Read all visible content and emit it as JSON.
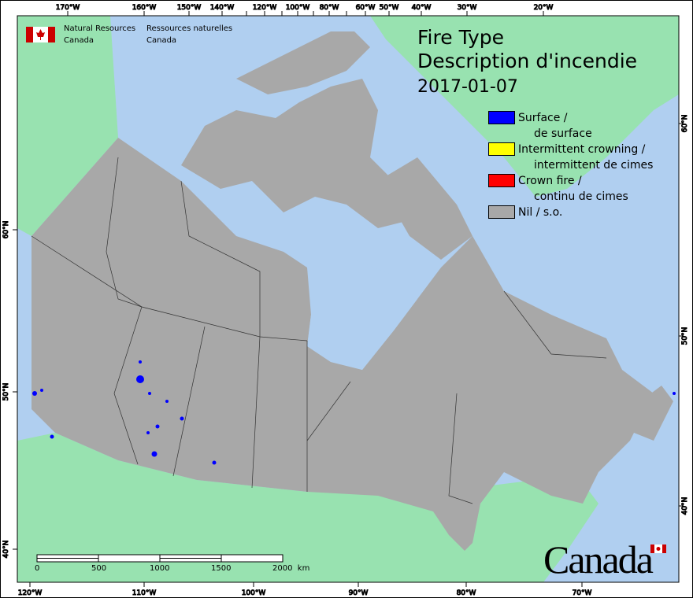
{
  "header": {
    "org_en_line1": "Natural Resources",
    "org_en_line2": "Canada",
    "org_fr_line1": "Ressources naturelles",
    "org_fr_line2": "Canada"
  },
  "title": {
    "line1": "Fire Type",
    "line2": "Description d'incendie",
    "date": "2017-01-07"
  },
  "legend": [
    {
      "label": "Surface /",
      "sub": "de surface",
      "color": "#0000ff"
    },
    {
      "label": "Intermittent crowning /",
      "sub": "intermittent de cimes",
      "color": "#ffff00"
    },
    {
      "label": "Crown fire /",
      "sub": "continu de cimes",
      "color": "#ff0000"
    },
    {
      "label": "Nil / s.o.",
      "sub": "",
      "color": "#a8a8a8"
    }
  ],
  "axes": {
    "top": [
      "170°W",
      "160°W",
      "150°W",
      "140°W",
      "120°W",
      "100°W",
      "80°W",
      "60°W",
      "50°W",
      "40°W",
      "30°W",
      "20°W"
    ],
    "bottom": [
      "120°W",
      "110°W",
      "100°W",
      "90°W",
      "80°W",
      "70°W"
    ],
    "left": [
      "60°N",
      "50°N",
      "40°N"
    ],
    "right": [
      "60°N",
      "50°N",
      "40°N"
    ]
  },
  "scale_bar": {
    "labels": [
      "0",
      "500",
      "1000",
      "1500",
      "2000  km"
    ]
  },
  "wordmark": "Canada",
  "colors": {
    "ocean": "#b0cff0",
    "other_land": "#98e2b0",
    "canada_land": "#a8a8a8",
    "surface_fire": "#0000ff"
  }
}
